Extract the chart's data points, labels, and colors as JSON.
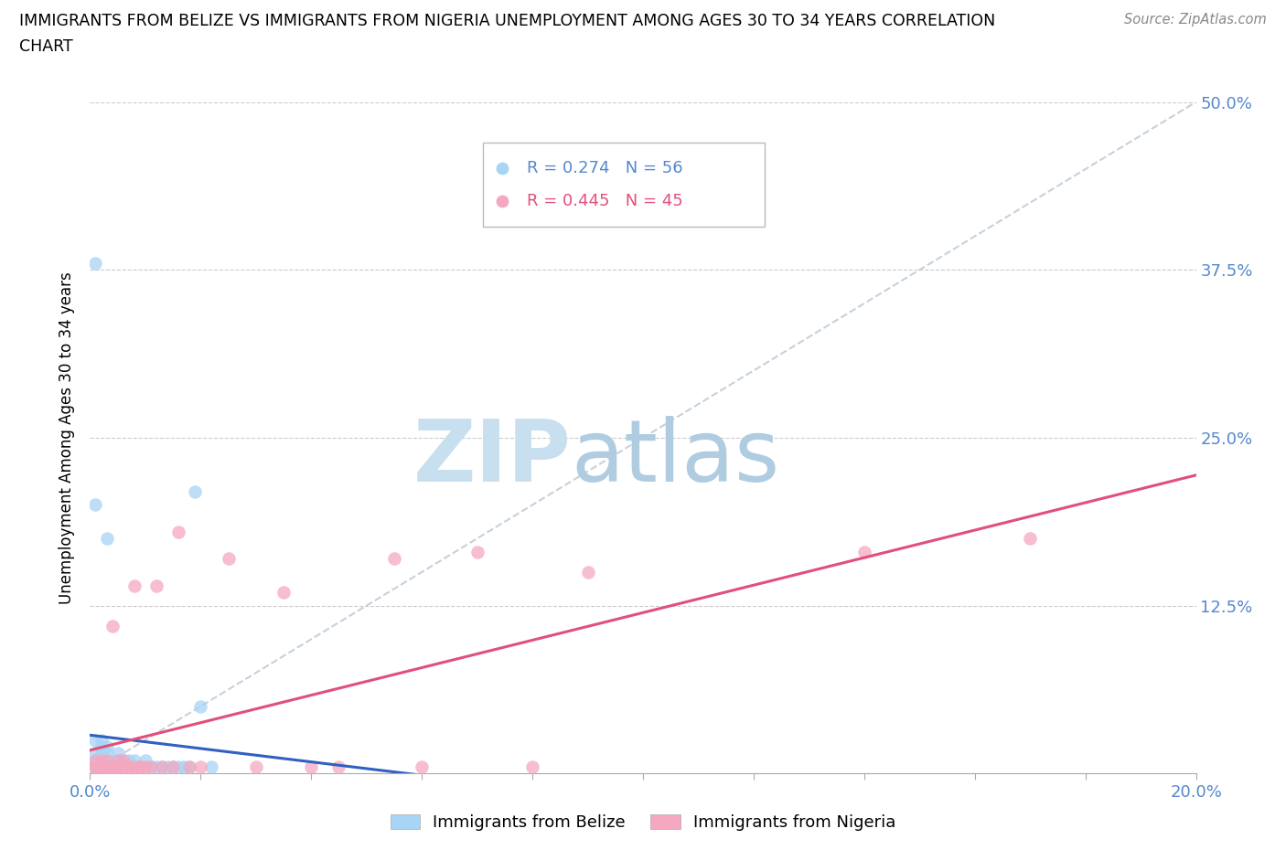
{
  "title_line1": "IMMIGRANTS FROM BELIZE VS IMMIGRANTS FROM NIGERIA UNEMPLOYMENT AMONG AGES 30 TO 34 YEARS CORRELATION",
  "title_line2": "CHART",
  "source": "Source: ZipAtlas.com",
  "ylabel": "Unemployment Among Ages 30 to 34 years",
  "xlim": [
    0.0,
    0.2
  ],
  "ylim": [
    0.0,
    0.5
  ],
  "belize_R": 0.274,
  "belize_N": 56,
  "nigeria_R": 0.445,
  "nigeria_N": 45,
  "belize_color": "#A8D4F5",
  "nigeria_color": "#F5A8C0",
  "belize_line_color": "#3060C0",
  "nigeria_line_color": "#E0507A",
  "ref_line_color": "#C0CCD8",
  "tick_color": "#5588CC",
  "belize_x": [
    0.001,
    0.001,
    0.001,
    0.001,
    0.001,
    0.001,
    0.001,
    0.001,
    0.002,
    0.002,
    0.002,
    0.002,
    0.002,
    0.002,
    0.002,
    0.003,
    0.003,
    0.003,
    0.003,
    0.003,
    0.003,
    0.004,
    0.004,
    0.004,
    0.004,
    0.004,
    0.005,
    0.005,
    0.005,
    0.005,
    0.006,
    0.006,
    0.006,
    0.007,
    0.007,
    0.008,
    0.008,
    0.009,
    0.009,
    0.01,
    0.01,
    0.011,
    0.012,
    0.013,
    0.014,
    0.015,
    0.016,
    0.017,
    0.018,
    0.019,
    0.02,
    0.022,
    0.001,
    0.002,
    0.003,
    0.004
  ],
  "belize_y": [
    0.38,
    0.005,
    0.01,
    0.015,
    0.025,
    0.005,
    0.005,
    0.005,
    0.005,
    0.01,
    0.015,
    0.02,
    0.025,
    0.005,
    0.005,
    0.005,
    0.01,
    0.015,
    0.02,
    0.005,
    0.005,
    0.005,
    0.01,
    0.005,
    0.005,
    0.005,
    0.005,
    0.01,
    0.015,
    0.005,
    0.005,
    0.01,
    0.005,
    0.01,
    0.005,
    0.005,
    0.01,
    0.005,
    0.005,
    0.005,
    0.01,
    0.005,
    0.005,
    0.005,
    0.005,
    0.005,
    0.005,
    0.005,
    0.005,
    0.21,
    0.05,
    0.005,
    0.2,
    0.005,
    0.175,
    0.005
  ],
  "nigeria_x": [
    0.001,
    0.001,
    0.001,
    0.002,
    0.002,
    0.002,
    0.002,
    0.003,
    0.003,
    0.003,
    0.004,
    0.004,
    0.004,
    0.005,
    0.005,
    0.005,
    0.006,
    0.006,
    0.006,
    0.007,
    0.007,
    0.008,
    0.008,
    0.009,
    0.009,
    0.01,
    0.011,
    0.012,
    0.013,
    0.015,
    0.016,
    0.018,
    0.02,
    0.025,
    0.03,
    0.035,
    0.04,
    0.045,
    0.055,
    0.06,
    0.07,
    0.08,
    0.09,
    0.14,
    0.17
  ],
  "nigeria_y": [
    0.005,
    0.01,
    0.005,
    0.005,
    0.01,
    0.005,
    0.005,
    0.005,
    0.01,
    0.005,
    0.005,
    0.11,
    0.005,
    0.005,
    0.01,
    0.005,
    0.005,
    0.01,
    0.005,
    0.005,
    0.005,
    0.005,
    0.14,
    0.005,
    0.005,
    0.005,
    0.005,
    0.14,
    0.005,
    0.005,
    0.18,
    0.005,
    0.005,
    0.16,
    0.005,
    0.135,
    0.005,
    0.005,
    0.16,
    0.005,
    0.165,
    0.005,
    0.15,
    0.165,
    0.175
  ]
}
